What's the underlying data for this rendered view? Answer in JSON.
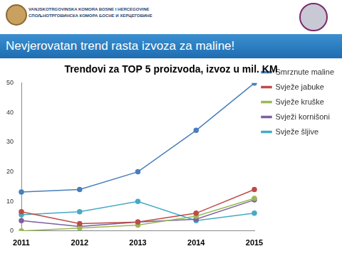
{
  "header": {
    "organization": [
      "VANJSKOTRGOVINSKA KOMORA BOSNE I HERCEGOVINE",
      "СПОЉНОТРГОВИНСКА КОМОРА БОСНЕ И ХЕРЦЕГОВИНЕ"
    ]
  },
  "banner": {
    "title": "Nevjerovatan trend rasta izvoza za maline!"
  },
  "chart_data": {
    "type": "line",
    "title": "Trendovi za TOP 5 proizvoda, izvoz u mil. KM",
    "categories": [
      "2011",
      "2012",
      "2013",
      "2014",
      "2015"
    ],
    "series": [
      {
        "name": "Smrznute maline",
        "color": "#4a7ebb",
        "values": [
          13.2,
          14,
          20,
          34,
          50
        ]
      },
      {
        "name": "Svježe jabuke",
        "color": "#be4b48",
        "values": [
          6.5,
          2.5,
          3,
          6,
          14
        ]
      },
      {
        "name": "Svježe kruške",
        "color": "#98b954",
        "values": [
          0,
          1,
          2,
          5,
          11
        ]
      },
      {
        "name": "Svježi kornišoni",
        "color": "#7d60a0",
        "values": [
          3.5,
          1.5,
          3,
          4,
          10.5
        ]
      },
      {
        "name": "Svježe šljive",
        "color": "#46aac5",
        "values": [
          5.5,
          6.5,
          10,
          3.5,
          6
        ]
      }
    ],
    "ylim": [
      0,
      50
    ],
    "yticks": [
      0,
      10,
      20,
      30,
      40,
      50
    ],
    "grid": false,
    "legend": "right",
    "marker": "circle"
  }
}
